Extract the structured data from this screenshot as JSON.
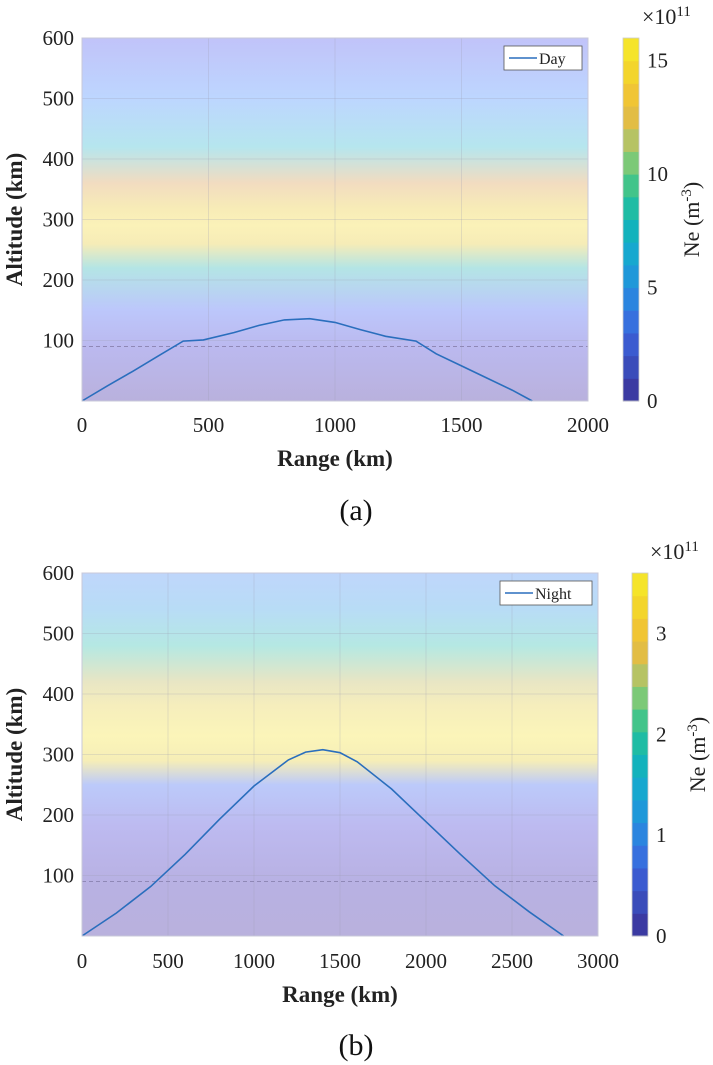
{
  "chart_data": [
    {
      "panel_label": "(a)",
      "type": "line",
      "xlabel": "Range (km)",
      "ylabel": "Altitude (km)",
      "xlim": [
        0,
        2000
      ],
      "ylim": [
        0,
        600
      ],
      "xticks": [
        "0",
        "500",
        "1000",
        "1500",
        "2000"
      ],
      "yticks": [
        "100",
        "200",
        "300",
        "400",
        "500",
        "600"
      ],
      "grid": true,
      "legend_position": "top-right",
      "series": [
        {
          "name": "Day",
          "color": "#2a6ebd",
          "x": [
            0,
            100,
            200,
            300,
            400,
            480,
            600,
            700,
            800,
            900,
            1000,
            1100,
            1200,
            1320,
            1400,
            1500,
            1600,
            1700,
            1780
          ],
          "y": [
            0,
            25,
            49,
            74,
            99,
            101,
            113,
            125,
            134,
            136,
            130,
            118,
            107,
            99,
            78,
            58,
            38,
            18,
            0
          ]
        }
      ],
      "background_profile": {
        "quantity": "Ne",
        "peak_altitude": 290,
        "peak_value": 1600000000000.0,
        "band_altitudes": [
          0,
          90,
          150,
          220,
          260,
          290,
          320,
          360,
          420,
          500,
          600
        ],
        "band_colors": [
          "#b9b1dd",
          "#bbb9ef",
          "#bcc7fb",
          "#b4e5e5",
          "#f6ecb7",
          "#fbf2b8",
          "#f7ebb7",
          "#f2dcc0",
          "#b6e6ee",
          "#bdd6ff",
          "#c1c3f9"
        ]
      },
      "dashed_reference_altitude": 90,
      "colorbar": {
        "label": "Ne (m",
        "label_superscript": "-3",
        "label_close": ")",
        "multiplier": "×10",
        "multiplier_exponent": "11",
        "min": 0,
        "max": 16,
        "ticks": [
          "0",
          "5",
          "10",
          "15"
        ],
        "tick_values": [
          0,
          5,
          10,
          15
        ],
        "colors": [
          "#3b3aa2",
          "#3a4cba",
          "#3b5bd0",
          "#3770de",
          "#2b85df",
          "#1f98d9",
          "#17a8cf",
          "#13b2bc",
          "#1fbca4",
          "#42c48a",
          "#7cc977",
          "#b6c364",
          "#e2bd45",
          "#f0c535",
          "#f3d52c",
          "#f5e42a"
        ]
      }
    },
    {
      "panel_label": "(b)",
      "type": "line",
      "xlabel": "Range (km)",
      "ylabel": "Altitude (km)",
      "xlim": [
        0,
        3000
      ],
      "ylim": [
        0,
        600
      ],
      "xticks": [
        "0",
        "500",
        "1000",
        "1500",
        "2000",
        "2500",
        "3000"
      ],
      "yticks": [
        "100",
        "200",
        "300",
        "400",
        "500",
        "600"
      ],
      "grid": true,
      "legend_position": "top-right",
      "series": [
        {
          "name": "Night",
          "color": "#2a6ebd",
          "x": [
            0,
            200,
            400,
            600,
            800,
            1000,
            1200,
            1300,
            1400,
            1500,
            1600,
            1800,
            2000,
            2200,
            2400,
            2600,
            2800
          ],
          "y": [
            0,
            38,
            82,
            135,
            193,
            248,
            291,
            304,
            308,
            303,
            288,
            243,
            189,
            135,
            83,
            40,
            0
          ]
        }
      ],
      "background_profile": {
        "quantity": "Ne",
        "peak_altitude": 330,
        "peak_value": 360000000000.0,
        "band_altitudes": [
          0,
          90,
          180,
          250,
          290,
          330,
          380,
          420,
          480,
          540,
          600
        ],
        "band_colors": [
          "#b9b1dd",
          "#b8b1e3",
          "#bdbaf0",
          "#bccafa",
          "#f6eeb7",
          "#fbf5b9",
          "#f6eebc",
          "#e8e6c4",
          "#b5e8e3",
          "#b8dcf6",
          "#bfd6fb"
        ]
      },
      "dashed_reference_altitude": 90,
      "colorbar": {
        "label": "Ne (m",
        "label_superscript": "-3",
        "label_close": ")",
        "multiplier": "×10",
        "multiplier_exponent": "11",
        "min": 0,
        "max": 3.6,
        "ticks": [
          "0",
          "1",
          "2",
          "3"
        ],
        "tick_values": [
          0,
          1,
          2,
          3
        ],
        "colors": [
          "#3b3aa2",
          "#3a4cba",
          "#3b5bd0",
          "#3770de",
          "#2b85df",
          "#1f98d9",
          "#17a8cf",
          "#13b2bc",
          "#1fbca4",
          "#42c48a",
          "#7cc977",
          "#b6c364",
          "#e2bd45",
          "#f0c535",
          "#f3d52c",
          "#f5e42a"
        ]
      }
    }
  ]
}
